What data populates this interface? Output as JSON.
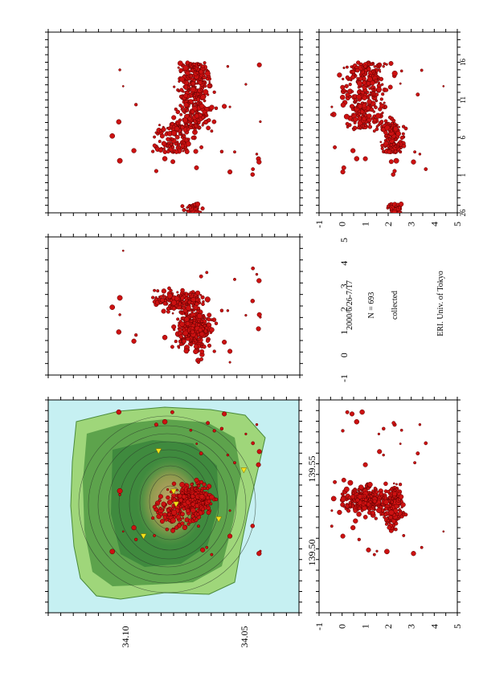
{
  "annotation": {
    "period": "2000/6/26-7/17",
    "count": "N = 693",
    "status": "collected",
    "institution": "ERI. Univ. of Tokyo"
  },
  "chart_data": [
    {
      "id": "map",
      "type": "scatter",
      "title": "",
      "xlabel": "",
      "ylabel": "",
      "x_ticks": [
        "139.50",
        "139.55"
      ],
      "y_ticks": [
        "34.05",
        "34.10"
      ],
      "xlim": [
        139.475,
        139.575
      ],
      "ylim": [
        34.025,
        34.125
      ],
      "grid": false,
      "background": "island topography (green land, brown summit, light-blue sea, contour lines)",
      "colors": {
        "sea": "#c6f0f2",
        "land": "#4a9a4a",
        "summit": "#b59a5a",
        "event": "#cc1111",
        "station": "#f5e21a"
      },
      "stations": [
        {
          "x": 139.519,
          "y": 34.093
        },
        {
          "x": 139.542,
          "y": 34.103
        },
        {
          "x": 139.526,
          "y": 34.076
        },
        {
          "x": 139.532,
          "y": 34.075
        },
        {
          "x": 139.551,
          "y": 34.069
        },
        {
          "x": 139.511,
          "y": 34.063
        }
      ]
    },
    {
      "id": "map-depth",
      "type": "scatter",
      "title": "",
      "xlabel": "",
      "ylabel": "",
      "x_ticks": [
        "139.50",
        "139.55"
      ],
      "y_ticks": [
        "-1",
        "0",
        "1",
        "2",
        "3",
        "4",
        "5"
      ],
      "xlim": [
        139.475,
        139.575
      ],
      "ylim": [
        -1,
        5
      ],
      "note": "longitude vs depth (depth increases to the right)"
    },
    {
      "id": "lat-depth",
      "type": "scatter",
      "title": "",
      "xlabel": "",
      "ylabel": "",
      "x_ticks": [
        "-1",
        "0",
        "1",
        "2",
        "3",
        "4",
        "5"
      ],
      "xlim": [
        -1,
        5
      ],
      "ylim": [
        34.025,
        34.125
      ],
      "note": "depth vs latitude"
    },
    {
      "id": "time-lat",
      "type": "scatter",
      "title": "",
      "xlabel": "",
      "ylabel": "",
      "x_ticks": [
        "26",
        "1",
        "6",
        "11",
        "16"
      ],
      "ylim": [
        34.025,
        34.125
      ],
      "note": "origin time (day) vs latitude"
    },
    {
      "id": "time-depth",
      "type": "scatter",
      "title": "",
      "xlabel": "",
      "ylabel": "",
      "x_ticks": [
        "26",
        "1",
        "6",
        "11",
        "16"
      ],
      "y_ticks": [
        "-1",
        "0",
        "1",
        "2",
        "3",
        "4",
        "5"
      ],
      "ylim": [
        -1,
        5
      ],
      "note": "origin time (day) vs depth"
    }
  ]
}
